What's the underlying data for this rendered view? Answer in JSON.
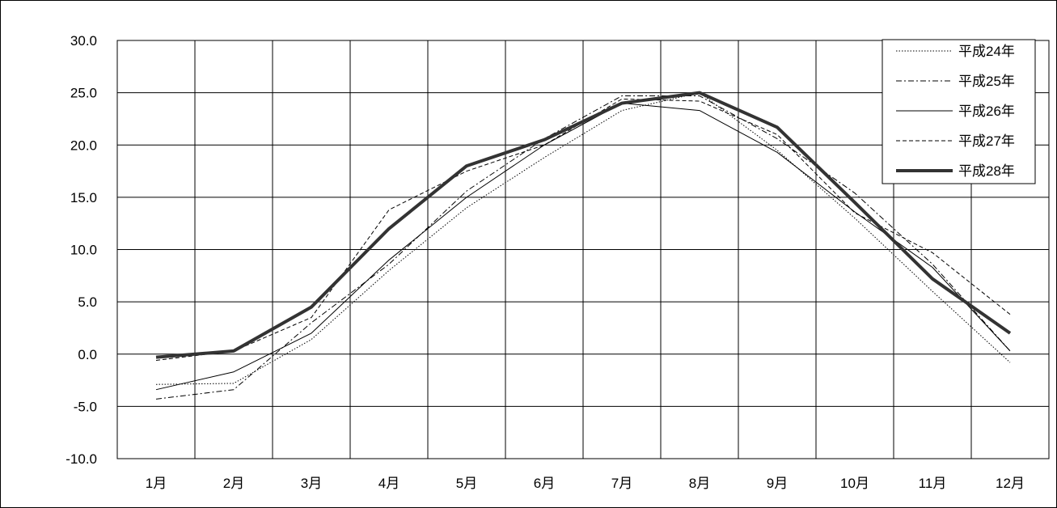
{
  "chart_data": {
    "type": "line",
    "categories": [
      "1月",
      "2月",
      "3月",
      "4月",
      "5月",
      "6月",
      "7月",
      "8月",
      "9月",
      "10月",
      "11月",
      "12月"
    ],
    "y_ticks": [
      "30.0",
      "25.0",
      "20.0",
      "15.0",
      "10.0",
      "5.0",
      "0.0",
      "-5.0",
      "-10.0"
    ],
    "ylim": [
      -10,
      30
    ],
    "grid": true,
    "legend_position": "top-right",
    "series": [
      {
        "name": "平成24年",
        "style": "dotted",
        "color": "#000000",
        "values": [
          -2.9,
          -2.8,
          1.4,
          8.0,
          14.0,
          18.8,
          23.3,
          25.0,
          19.5,
          13.0,
          6.0,
          -0.8
        ]
      },
      {
        "name": "平成25年",
        "style": "dashdot",
        "color": "#000000",
        "values": [
          -4.3,
          -3.4,
          3.0,
          8.6,
          15.6,
          20.6,
          24.7,
          24.7,
          20.6,
          15.4,
          8.6,
          0.3
        ]
      },
      {
        "name": "平成26年",
        "style": "solid",
        "color": "#000000",
        "values": [
          -3.4,
          -1.7,
          2.0,
          9.0,
          15.0,
          20.0,
          24.0,
          23.3,
          19.3,
          13.6,
          8.3,
          0.3
        ]
      },
      {
        "name": "平成27年",
        "style": "dashed",
        "color": "#000000",
        "values": [
          -0.6,
          0.3,
          3.5,
          13.8,
          17.5,
          20.0,
          24.4,
          24.2,
          21.0,
          13.5,
          9.7,
          3.8
        ]
      },
      {
        "name": "平成28年",
        "style": "thick",
        "color": "#333333",
        "values": [
          -0.3,
          0.3,
          4.5,
          12.0,
          18.0,
          20.5,
          24.0,
          25.0,
          21.7,
          14.5,
          7.2,
          2.0
        ]
      }
    ]
  }
}
